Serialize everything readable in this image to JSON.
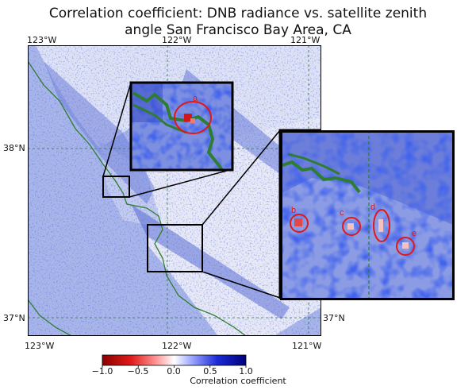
{
  "title": {
    "line1": "Correlation coefficient: DNB radiance vs. satellite zenith",
    "line2": "angle San Francisco Bay Area, CA"
  },
  "axes": {
    "top_lon": [
      "123°W",
      "122°W",
      "121°W"
    ],
    "bottom_lon": [
      "123°W",
      "122°W",
      "121°W"
    ],
    "left_lat": [
      "38°N",
      "37°N"
    ],
    "right_lat": [
      "37°N"
    ]
  },
  "insets": {
    "north_markers": [
      "a"
    ],
    "south_markers": [
      "b",
      "c",
      "d",
      "e"
    ]
  },
  "colorbar": {
    "label": "Correlation coefficient",
    "ticks": [
      "−1.0",
      "−0.5",
      "0.0",
      "0.5",
      "1.0"
    ],
    "range": [
      -1.0,
      1.0
    ],
    "colormap": "seismic_r",
    "colors": {
      "neg": "#8b0000",
      "mid": "#ffffff",
      "pos": "#00007a"
    }
  },
  "colors": {
    "water_tone": "#9fb0e8",
    "land_tone": "#e6e8f6",
    "coastline": "#2e7d32",
    "marker": "#e01818",
    "frame": "#000000"
  }
}
